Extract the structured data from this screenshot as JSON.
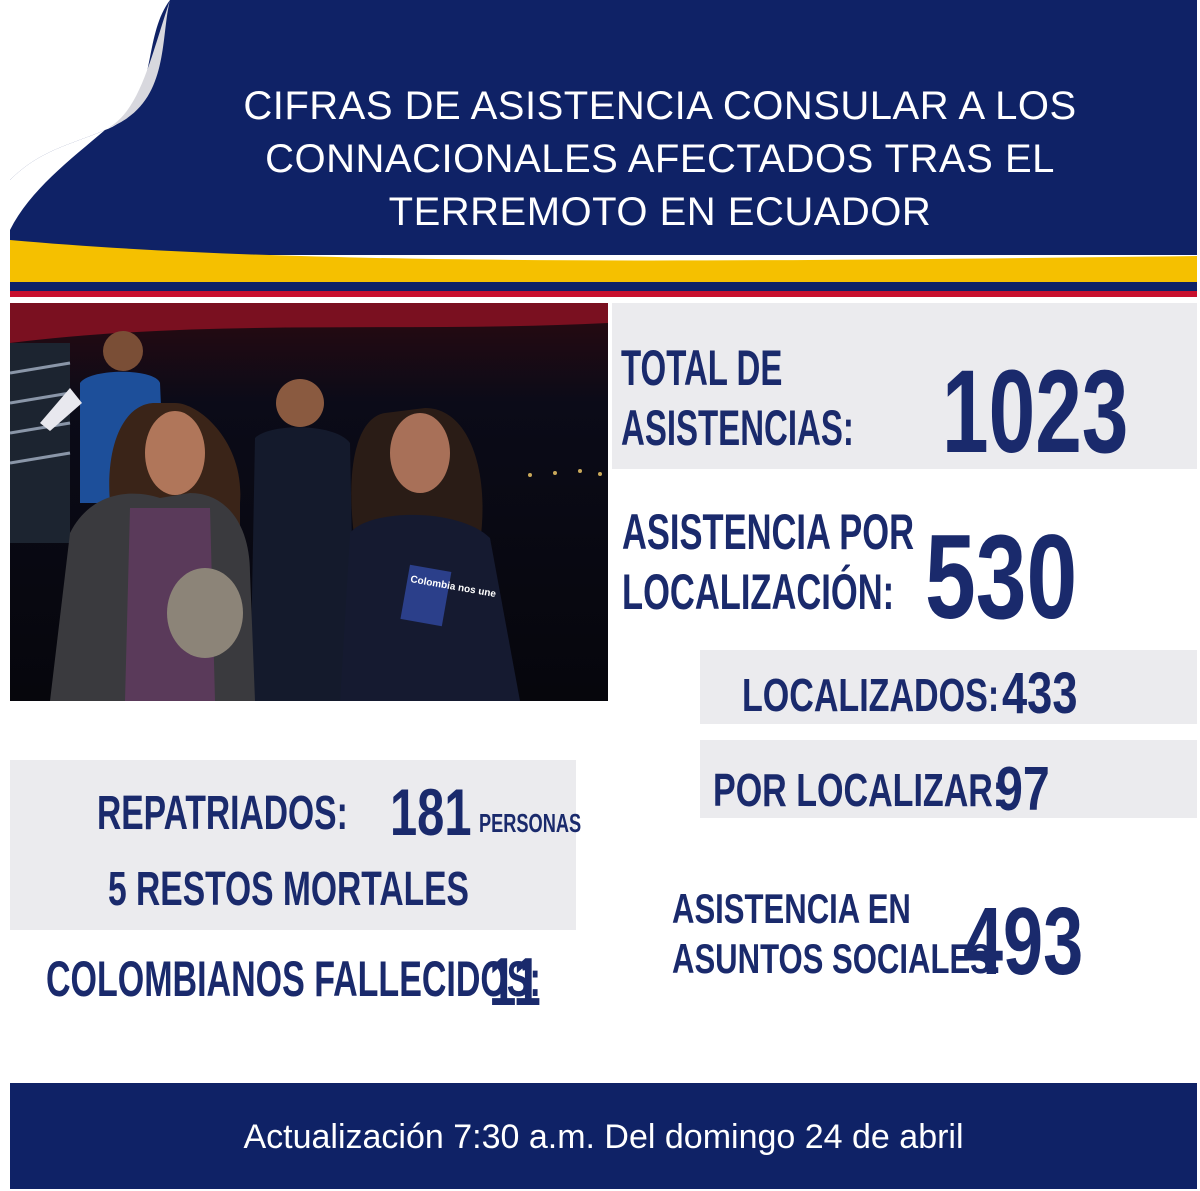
{
  "header": {
    "title_lines": [
      "CIFRAS DE ASISTENCIA CONSULAR A LOS",
      "CONNACIONALES AFECTADOS TRAS EL",
      "TERREMOTO EN ECUADOR"
    ]
  },
  "photo": {
    "jacket_text": "Colombia nos une"
  },
  "stats": {
    "total_label_1": "TOTAL DE",
    "total_label_2": "ASISTENCIAS:",
    "total_value": "1023",
    "localizacion_label_1": "ASISTENCIA POR",
    "localizacion_label_2": "LOCALIZACIÓN:",
    "localizacion_value": "530",
    "localizados_label": "LOCALIZADOS:",
    "localizados_value": "433",
    "por_localizar_label": "POR LOCALIZAR:",
    "por_localizar_value": "97",
    "repatriados_label": "REPATRIADOS:",
    "repatriados_value": "181",
    "repatriados_unit": "PERSONAS",
    "restos_mortales": "5 RESTOS MORTALES",
    "fallecidos_label": "COLOMBIANOS FALLECIDOS:",
    "fallecidos_value": "11",
    "sociales_label_1": "ASISTENCIA EN",
    "sociales_label_2": "ASUNTOS SOCIALES:",
    "sociales_value": "493"
  },
  "footer": {
    "text": "Actualización 7:30 a.m. Del domingo 24 de abril"
  },
  "colors": {
    "navy": "#0f2266",
    "text_navy": "#1a2a6c",
    "yellow": "#f5c000",
    "red": "#c8102e",
    "panel_grey": "#ebebee"
  }
}
